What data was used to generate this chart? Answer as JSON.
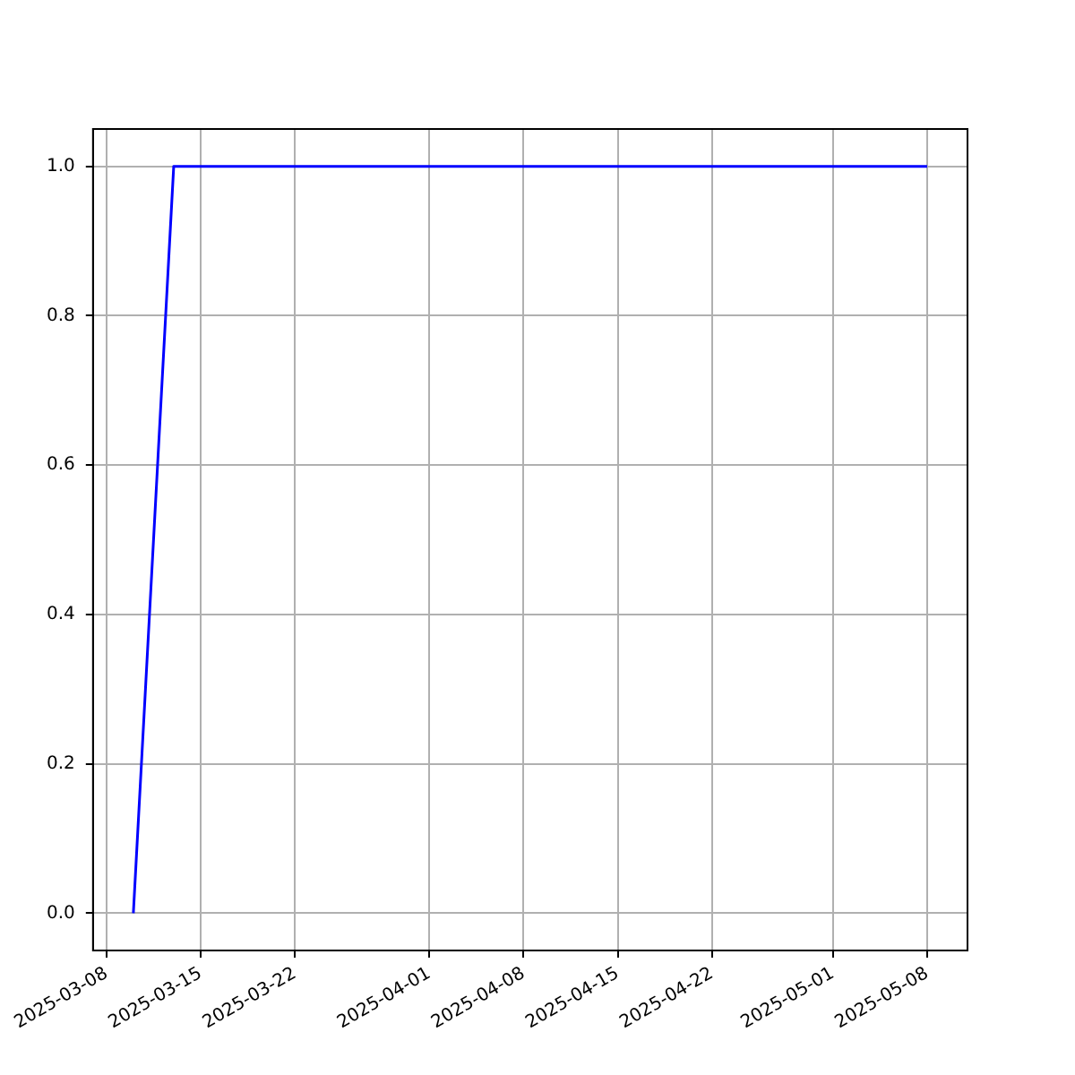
{
  "chart_data": {
    "type": "line",
    "x": [
      "2025-03-10",
      "2025-03-13",
      "2025-05-08"
    ],
    "series": [
      {
        "color": "#0000ff",
        "values": [
          0,
          1,
          1
        ]
      }
    ],
    "xlim": [
      "2025-03-07",
      "2025-05-11"
    ],
    "xticks": [
      "2025-03-08",
      "2025-03-15",
      "2025-03-22",
      "2025-04-01",
      "2025-04-08",
      "2025-04-15",
      "2025-04-22",
      "2025-05-01",
      "2025-05-08"
    ],
    "ylim": [
      -0.05,
      1.05
    ],
    "yticks": [
      {
        "value": 0,
        "label": "0.0"
      },
      {
        "value": 0.2,
        "label": "0.2"
      },
      {
        "value": 0.4,
        "label": "0.4"
      },
      {
        "value": 0.6,
        "label": "0.6"
      },
      {
        "value": 0.8,
        "label": "0.8"
      },
      {
        "value": 1,
        "label": "1.0"
      }
    ],
    "grid": true,
    "legend": false,
    "marker": "none",
    "line_style": "solid"
  }
}
